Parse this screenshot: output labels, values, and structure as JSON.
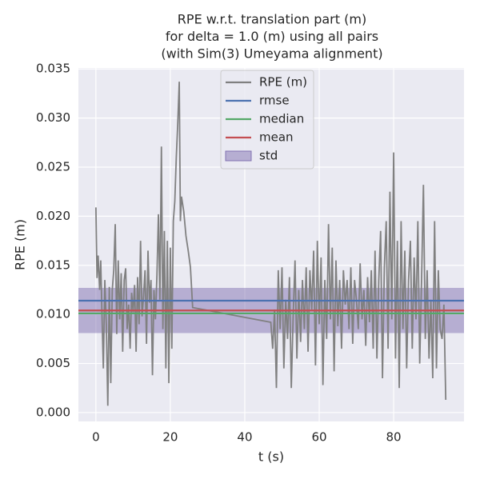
{
  "chart_data": {
    "type": "line",
    "title": [
      "RPE w.r.t. translation part (m)",
      "for delta = 1.0 (m) using all pairs",
      "(with Sim(3) Umeyama alignment)"
    ],
    "x_label": "t (s)",
    "y_label": "RPE (m)",
    "x": [
      0,
      0.3,
      0.6,
      1,
      1.3,
      1.6,
      2,
      2.4,
      2.8,
      3.2,
      3.6,
      4,
      4.4,
      4.8,
      5.2,
      5.6,
      6,
      6.4,
      6.8,
      7.2,
      7.6,
      8,
      8.4,
      8.8,
      9.2,
      9.6,
      10,
      10.4,
      10.8,
      11.2,
      11.6,
      12,
      12.4,
      12.8,
      13.2,
      13.6,
      14,
      14.4,
      14.8,
      15.2,
      15.6,
      16,
      16.4,
      16.8,
      17.2,
      17.6,
      18,
      18.4,
      18.8,
      19.2,
      19.6,
      20,
      20.4,
      20.8,
      21.2,
      21.6,
      22,
      22.4,
      22.7,
      23,
      23.6,
      24.2,
      24.8,
      25.4,
      26,
      47,
      47.5,
      48,
      48.5,
      49,
      49.5,
      50,
      50.5,
      51,
      51.5,
      52,
      52.5,
      53,
      53.5,
      54,
      54.5,
      55,
      55.5,
      56,
      56.5,
      57,
      57.5,
      58,
      58.5,
      59,
      59.5,
      60,
      60.5,
      61,
      61.5,
      62,
      62.5,
      63,
      63.5,
      64,
      64.5,
      65,
      65.5,
      66,
      66.5,
      67,
      67.5,
      68,
      68.5,
      69,
      69.5,
      70,
      70.5,
      71,
      71.5,
      72,
      72.5,
      73,
      73.5,
      74,
      74.5,
      75,
      75.5,
      76,
      76.5,
      77,
      77.5,
      78,
      78.5,
      79,
      79.5,
      80,
      80.5,
      81,
      81.5,
      82,
      82.5,
      83,
      83.5,
      84,
      84.5,
      85,
      85.5,
      86,
      86.5,
      87,
      87.5,
      88,
      88.5,
      89,
      89.5,
      90,
      90.5,
      91,
      91.5,
      92,
      92.5,
      93,
      93.5,
      94
    ],
    "series": [
      {
        "name": "RPE (m)",
        "color": "#808080",
        "values": [
          0.0209,
          0.0137,
          0.016,
          0.0125,
          0.0155,
          0.0105,
          0.0045,
          0.0135,
          0.009,
          0.0007,
          0.0128,
          0.003,
          0.0125,
          0.0145,
          0.0192,
          0.008,
          0.0155,
          0.0095,
          0.0142,
          0.0062,
          0.0135,
          0.0147,
          0.0085,
          0.011,
          0.0065,
          0.0122,
          0.0102,
          0.013,
          0.0062,
          0.0138,
          0.009,
          0.0175,
          0.0098,
          0.0118,
          0.0145,
          0.007,
          0.0165,
          0.0112,
          0.0135,
          0.0038,
          0.0125,
          0.0095,
          0.014,
          0.0202,
          0.0115,
          0.0271,
          0.0085,
          0.0185,
          0.0045,
          0.0175,
          0.003,
          0.0168,
          0.0065,
          0.0195,
          0.0215,
          0.026,
          0.0295,
          0.0337,
          0.0195,
          0.022,
          0.0205,
          0.018,
          0.0165,
          0.0148,
          0.0107,
          0.0092,
          0.0065,
          0.0105,
          0.0025,
          0.0145,
          0.0085,
          0.0148,
          0.0045,
          0.0115,
          0.0075,
          0.0138,
          0.0025,
          0.0098,
          0.0155,
          0.0055,
          0.0125,
          0.0072,
          0.0135,
          0.0085,
          0.0148,
          0.0062,
          0.0145,
          0.0105,
          0.0165,
          0.0048,
          0.0175,
          0.009,
          0.0158,
          0.0028,
          0.0135,
          0.0075,
          0.0192,
          0.0095,
          0.0168,
          0.0042,
          0.0155,
          0.0088,
          0.0135,
          0.0065,
          0.0145,
          0.011,
          0.0135,
          0.0085,
          0.0148,
          0.007,
          0.0135,
          0.0115,
          0.0085,
          0.0152,
          0.0095,
          0.0125,
          0.0068,
          0.0138,
          0.0092,
          0.0145,
          0.0065,
          0.0165,
          0.0055,
          0.0135,
          0.0185,
          0.0035,
          0.0148,
          0.0195,
          0.0065,
          0.0225,
          0.0095,
          0.0265,
          0.0055,
          0.0175,
          0.0025,
          0.0195,
          0.0085,
          0.0165,
          0.0045,
          0.0135,
          0.0175,
          0.0065,
          0.0158,
          0.0095,
          0.0195,
          0.005,
          0.0135,
          0.0232,
          0.0075,
          0.0145,
          0.0055,
          0.0115,
          0.0035,
          0.0195,
          0.0045,
          0.0145,
          0.0085,
          0.0075,
          0.011,
          0.0013
        ]
      }
    ],
    "stats": [
      {
        "name": "rmse",
        "color": "#4c72b0",
        "value": 0.0114
      },
      {
        "name": "median",
        "color": "#55a868",
        "value": 0.0101
      },
      {
        "name": "mean",
        "color": "#c44e52",
        "value": 0.0104
      },
      {
        "name": "std",
        "color": "#8172b2",
        "value": 0.0023
      }
    ],
    "xlim": [
      -4.7,
      98.9
    ],
    "ylim": [
      -0.0009,
      0.0351
    ],
    "xticks": [
      0,
      20,
      40,
      60,
      80
    ],
    "yticks": [
      {
        "value": 0,
        "label": "0.000"
      },
      {
        "value": 0.005,
        "label": "0.005"
      },
      {
        "value": 0.01,
        "label": "0.010"
      },
      {
        "value": 0.015,
        "label": "0.015"
      },
      {
        "value": 0.02,
        "label": "0.020"
      },
      {
        "value": 0.025,
        "label": "0.025"
      },
      {
        "value": 0.03,
        "label": "0.030"
      },
      {
        "value": 0.035,
        "label": "0.035"
      }
    ],
    "grid": true,
    "legend": "upper center"
  }
}
